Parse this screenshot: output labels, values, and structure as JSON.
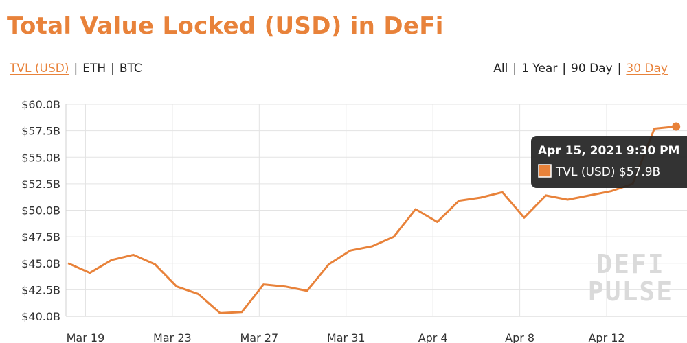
{
  "header": {
    "title": "Total Value Locked (USD) in DeFi"
  },
  "metric_options": [
    {
      "label": "TVL (USD)",
      "active": true
    },
    {
      "label": "ETH",
      "active": false
    },
    {
      "label": "BTC",
      "active": false
    }
  ],
  "range_options": [
    {
      "label": "All",
      "active": false
    },
    {
      "label": "1 Year",
      "active": false
    },
    {
      "label": "90 Day",
      "active": false
    },
    {
      "label": "30 Day",
      "active": true
    }
  ],
  "watermark": [
    "DEFI",
    "PULSE"
  ],
  "tooltip": {
    "date": "Apr 15, 2021 9:30 PM",
    "series_label": "TVL (USD) $57.9B"
  },
  "colors": {
    "accent": "#e8823a",
    "line": "#e8823a",
    "tooltip_bg": "#222222"
  },
  "chart_data": {
    "type": "line",
    "xlabel": "",
    "ylabel": "",
    "ylim": [
      40.0,
      60.0
    ],
    "y_ticks": [
      "$40.0B",
      "$42.5B",
      "$45.0B",
      "$47.5B",
      "$50.0B",
      "$52.5B",
      "$55.0B",
      "$57.5B",
      "$60.0B"
    ],
    "y_tick_values": [
      40.0,
      42.5,
      45.0,
      47.5,
      50.0,
      52.5,
      55.0,
      57.5,
      60.0
    ],
    "x_ticks": [
      "Mar 19",
      "Mar 23",
      "Mar 27",
      "Mar 31",
      "Apr 4",
      "Apr 8",
      "Apr 12"
    ],
    "x_tick_day_index": [
      0,
      4,
      8,
      12,
      16,
      20,
      24
    ],
    "x_range_days": [
      -0.9,
      27.7
    ],
    "grid": true,
    "series": [
      {
        "name": "TVL (USD)",
        "x": [
          "Mar 18",
          "Mar 19",
          "Mar 20",
          "Mar 21",
          "Mar 22",
          "Mar 23",
          "Mar 24",
          "Mar 25",
          "Mar 26",
          "Mar 27",
          "Mar 28",
          "Mar 29",
          "Mar 30",
          "Mar 31",
          "Apr 1",
          "Apr 2",
          "Apr 3",
          "Apr 4",
          "Apr 5",
          "Apr 6",
          "Apr 7",
          "Apr 8",
          "Apr 9",
          "Apr 10",
          "Apr 11",
          "Apr 12",
          "Apr 13",
          "Apr 14",
          "Apr 15"
        ],
        "x_day_index": [
          -0.8,
          0.2,
          1.2,
          2.2,
          3.2,
          4.2,
          5.2,
          6.2,
          7.2,
          8.2,
          9.2,
          10.2,
          11.2,
          12.2,
          13.2,
          14.2,
          15.2,
          16.2,
          17.2,
          18.2,
          19.2,
          20.2,
          21.2,
          22.2,
          23.2,
          24.2,
          25.2,
          26.2,
          27.2
        ],
        "values": [
          45.0,
          44.1,
          45.3,
          45.8,
          44.9,
          42.8,
          42.1,
          40.3,
          40.4,
          43.0,
          42.8,
          42.4,
          44.9,
          46.2,
          46.6,
          47.5,
          50.1,
          48.9,
          50.9,
          51.2,
          51.7,
          49.3,
          51.4,
          51.0,
          51.4,
          51.8,
          52.5,
          57.7,
          57.9
        ]
      }
    ]
  }
}
